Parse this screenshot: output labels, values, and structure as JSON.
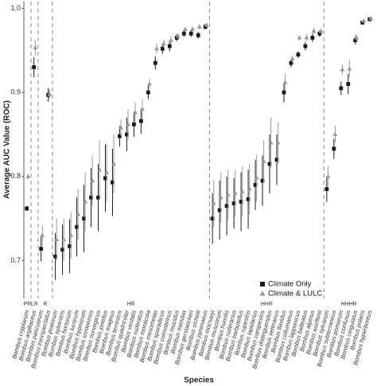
{
  "chart_data": {
    "type": "point-errorbar",
    "y_label": "Average AUC Value (ROC)",
    "x_label": "Species",
    "categories": [
      "Bombus cryptarum",
      "Bombus argillaceus",
      "Bombus pascuorum",
      "Bombus inexspectatus",
      "Bombus pratorum",
      "Bombus sylvestris",
      "Bombus hortorum",
      "Bombus lucorum",
      "Bombus hypnorum",
      "Bombus soroeensis",
      "Bombus norvegicus",
      "Bombus jonellus",
      "Bombus magnus",
      "Bombus terrestris",
      "Bombus quadricolor",
      "Bombus vestalis",
      "Bombus ruderatus",
      "Bombus monticola",
      "Bombus mesomelas",
      "Bombus sporadicus",
      "Bombus consobrinus",
      "Bombus mucidus",
      "Bombus mendax",
      "Bombus gerstaeckeri",
      "Bombus sichelii",
      "Bombus pyrenaeus",
      "Bombus mocsaryi",
      "Bombus muscorum",
      "Bombus humilis",
      "Bombus ruderarius",
      "Bombus barbutellus",
      "Bombus rupestris",
      "Bombus lapidarius",
      "Bombus campestris",
      "Bombus distinguendus",
      "Bombus veteranus",
      "Bombus flavidus",
      "Bombus cullumanus",
      "Bombus lapponicus",
      "Bombus balteatus",
      "Bombus alpinus",
      "Bombus wurflenii",
      "Bombus sylvarum",
      "Bombus subterraneus",
      "Bombus pomorum",
      "Bombus confusus",
      "Bombus cingulatus",
      "Bombus polaris",
      "Bombus hyperboreus"
    ],
    "category_groups": [
      "PR",
      "LR",
      "R",
      "R",
      "HR",
      "HR",
      "HR",
      "HR",
      "HR",
      "HR",
      "HR",
      "HR",
      "HR",
      "HR",
      "HR",
      "HR",
      "HR",
      "HR",
      "HR",
      "HR",
      "HR",
      "HR",
      "HR",
      "HR",
      "HR",
      "HR",
      "HHR",
      "HHR",
      "HHR",
      "HHR",
      "HHR",
      "HHR",
      "HHR",
      "HHR",
      "HHR",
      "HHR",
      "HHR",
      "HHR",
      "HHR",
      "HHR",
      "HHR",
      "HHR",
      "HHHR",
      "HHHR",
      "HHHR",
      "HHHR",
      "HHHR",
      "HHHR",
      "HHHR"
    ],
    "series": [
      {
        "name": "Climate Only",
        "color": "#1a1a1a",
        "marker": "square",
        "values": [
          0.762,
          0.93,
          0.714,
          0.897,
          0.705,
          0.713,
          0.717,
          0.74,
          0.75,
          0.775,
          0.775,
          0.798,
          0.793,
          0.848,
          0.85,
          0.862,
          0.866,
          0.9,
          0.935,
          0.952,
          0.955,
          0.965,
          0.97,
          0.97,
          0.968,
          0.978,
          0.75,
          0.76,
          0.765,
          0.768,
          0.77,
          0.773,
          0.79,
          0.795,
          0.815,
          0.82,
          0.9,
          0.935,
          0.945,
          0.955,
          0.965,
          0.97,
          0.785,
          0.833,
          0.905,
          0.91,
          0.962,
          0.983,
          0.987
        ],
        "errors": [
          0.003,
          0.012,
          0.015,
          0.008,
          0.028,
          0.03,
          0.032,
          0.035,
          0.04,
          0.035,
          0.04,
          0.04,
          0.04,
          0.012,
          0.02,
          0.015,
          0.015,
          0.008,
          0.008,
          0.006,
          0.006,
          0.004,
          0.004,
          0.004,
          0.004,
          0.003,
          0.03,
          0.035,
          0.035,
          0.03,
          0.035,
          0.035,
          0.03,
          0.03,
          0.035,
          0.03,
          0.012,
          0.005,
          0.004,
          0.005,
          0.005,
          0.004,
          0.015,
          0.012,
          0.008,
          0.012,
          0.005,
          0.002,
          0.002
        ]
      },
      {
        "name": "Climate & LULC",
        "color": "#999999",
        "marker": "triangle",
        "values": [
          0.8,
          0.953,
          0.73,
          0.898,
          0.725,
          0.725,
          0.73,
          0.755,
          0.77,
          0.795,
          0.808,
          0.805,
          0.815,
          0.858,
          0.862,
          0.876,
          0.88,
          0.91,
          0.952,
          0.958,
          0.962,
          0.967,
          0.975,
          0.975,
          0.978,
          0.98,
          0.768,
          0.775,
          0.778,
          0.78,
          0.782,
          0.785,
          0.798,
          0.818,
          0.84,
          0.84,
          0.912,
          0.94,
          0.965,
          0.965,
          0.973,
          0.973,
          0.8,
          0.85,
          0.927,
          0.928,
          0.965,
          0.985,
          0.988
        ],
        "errors": [
          0.003,
          0.01,
          0.012,
          0.006,
          0.025,
          0.025,
          0.028,
          0.03,
          0.035,
          0.03,
          0.035,
          0.035,
          0.035,
          0.01,
          0.018,
          0.012,
          0.012,
          0.006,
          0.006,
          0.005,
          0.005,
          0.003,
          0.003,
          0.003,
          0.003,
          0.002,
          0.028,
          0.03,
          0.03,
          0.028,
          0.03,
          0.03,
          0.028,
          0.025,
          0.03,
          0.025,
          0.01,
          0.004,
          0.003,
          0.004,
          0.004,
          0.003,
          0.012,
          0.01,
          0.006,
          0.01,
          0.004,
          0.002,
          0.002
        ]
      }
    ],
    "ylim": [
      0.655,
      1.008
    ],
    "yticks": [
      0.7,
      0.8,
      0.9,
      {
        "value": 1,
        "label": "1.0"
      }
    ],
    "grid": false,
    "legend": "bottom-right"
  }
}
